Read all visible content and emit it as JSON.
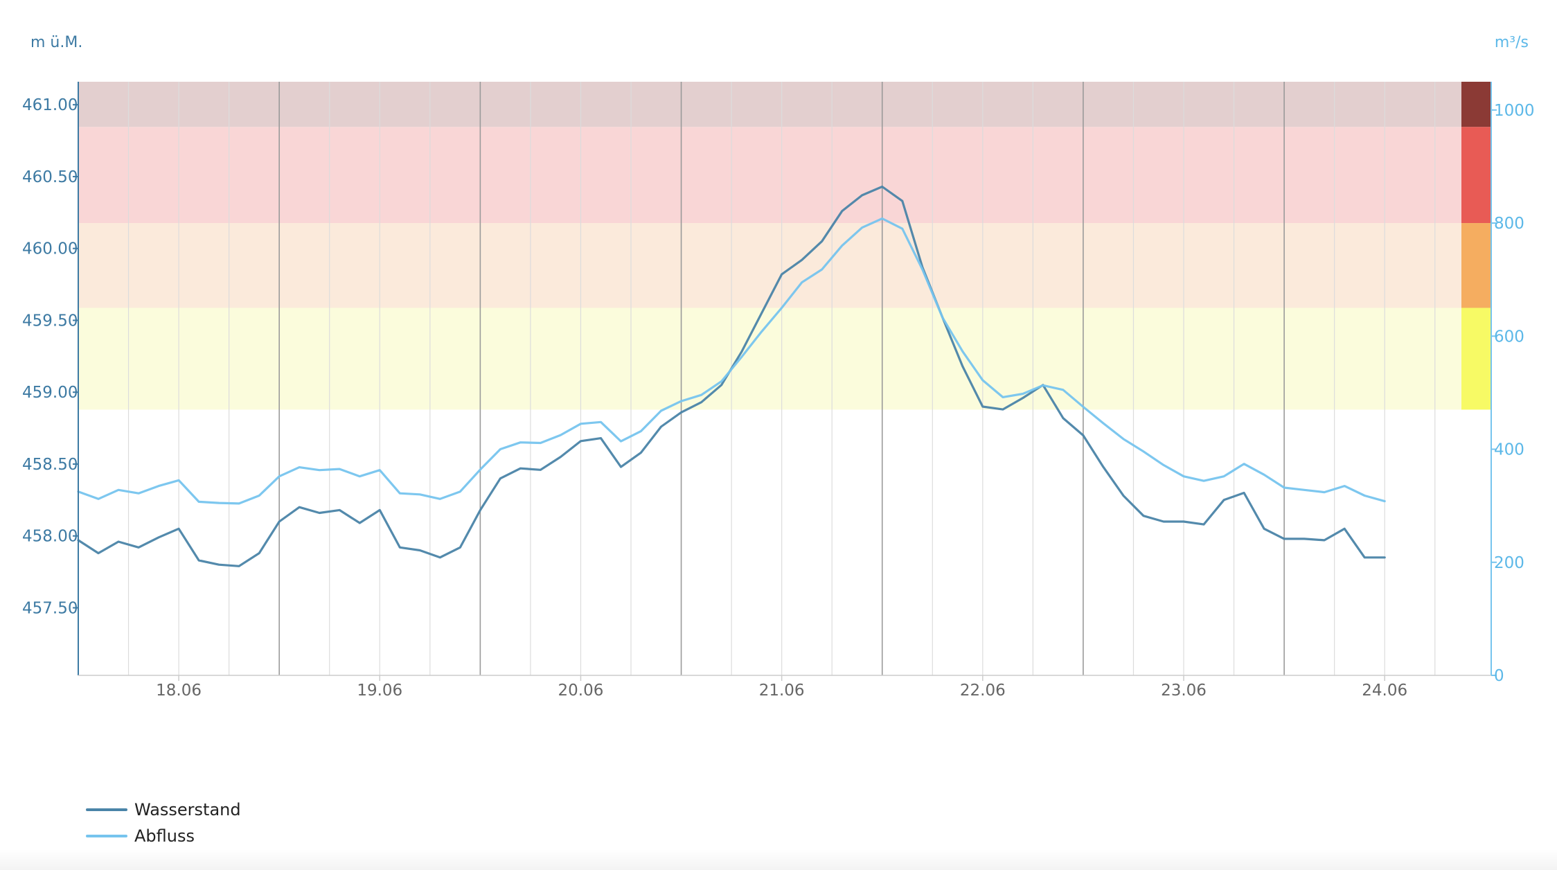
{
  "chart_data": {
    "type": "line",
    "left_axis": {
      "unit": "m ü.M.",
      "ticks": [
        "461.00",
        "460.50",
        "460.00",
        "459.50",
        "459.00",
        "458.50",
        "458.00",
        "457.50"
      ],
      "range": [
        457.03,
        461.16
      ]
    },
    "right_axis": {
      "unit": "m³/s",
      "ticks": [
        "1000",
        "800",
        "600",
        "400",
        "200",
        "0"
      ],
      "range": [
        0,
        1050
      ]
    },
    "x_axis": {
      "ticks": [
        "18.06",
        "19.06",
        "20.06",
        "21.06",
        "22.06",
        "23.06",
        "24.06"
      ],
      "range": [
        17.5,
        24.53
      ]
    },
    "danger_bands": [
      {
        "from": 970,
        "to": 1050,
        "fill": "#e3cfcf",
        "marker": "#8b3a35"
      },
      {
        "from": 800,
        "to": 970,
        "fill": "#f9d6d6",
        "marker": "#e85b55"
      },
      {
        "from": 650,
        "to": 800,
        "fill": "#fbeadb",
        "marker": "#f5ad60"
      },
      {
        "from": 470,
        "to": 650,
        "fill": "#fbfcdc",
        "marker": "#f7fa65"
      }
    ],
    "series": [
      {
        "name": "Wasserstand",
        "axis": "left",
        "color": "#4a84a8",
        "x": [
          17.5,
          17.6,
          17.7,
          17.8,
          17.9,
          18.0,
          18.1,
          18.2,
          18.3,
          18.4,
          18.5,
          18.6,
          18.7,
          18.8,
          18.9,
          19.0,
          19.1,
          19.2,
          19.3,
          19.4,
          19.5,
          19.6,
          19.7,
          19.8,
          19.9,
          20.0,
          20.1,
          20.2,
          20.3,
          20.4,
          20.5,
          20.6,
          20.7,
          20.8,
          20.9,
          21.0,
          21.1,
          21.2,
          21.3,
          21.4,
          21.5,
          21.6,
          21.7,
          21.8,
          21.9,
          22.0,
          22.1,
          22.2,
          22.3,
          22.4,
          22.5,
          22.6,
          22.7,
          22.8,
          22.9,
          23.0,
          23.1,
          23.2,
          23.3,
          23.4,
          23.5,
          23.6,
          23.7,
          23.8,
          23.9,
          24.0
        ],
        "y": [
          457.97,
          457.88,
          457.96,
          457.92,
          457.99,
          458.05,
          457.83,
          457.8,
          457.79,
          457.88,
          458.1,
          458.2,
          458.16,
          458.18,
          458.09,
          458.18,
          457.92,
          457.9,
          457.85,
          457.92,
          458.18,
          458.4,
          458.47,
          458.46,
          458.55,
          458.66,
          458.68,
          458.48,
          458.58,
          458.76,
          458.86,
          458.93,
          459.05,
          459.28,
          459.55,
          459.82,
          459.92,
          460.05,
          460.26,
          460.37,
          460.43,
          460.33,
          459.87,
          459.52,
          459.18,
          458.9,
          458.88,
          458.96,
          459.05,
          458.82,
          458.7,
          458.48,
          458.28,
          458.14,
          458.1,
          458.1,
          458.08,
          458.25,
          458.3,
          458.05,
          457.98,
          457.98,
          457.97,
          458.05,
          457.85,
          457.85
        ]
      },
      {
        "name": "Abfluss",
        "axis": "right",
        "color": "#76c4ee",
        "x": [
          17.5,
          17.6,
          17.7,
          17.8,
          17.9,
          18.0,
          18.1,
          18.2,
          18.3,
          18.4,
          18.5,
          18.6,
          18.7,
          18.8,
          18.9,
          19.0,
          19.1,
          19.2,
          19.3,
          19.4,
          19.5,
          19.6,
          19.7,
          19.8,
          19.9,
          20.0,
          20.1,
          20.2,
          20.3,
          20.4,
          20.5,
          20.6,
          20.7,
          20.8,
          20.9,
          21.0,
          21.1,
          21.2,
          21.3,
          21.4,
          21.5,
          21.6,
          21.7,
          21.8,
          21.9,
          22.0,
          22.1,
          22.2,
          22.3,
          22.4,
          22.5,
          22.6,
          22.7,
          22.8,
          22.9,
          23.0,
          23.1,
          23.2,
          23.3,
          23.4,
          23.5,
          23.6,
          23.7,
          23.8,
          23.9,
          24.0
        ],
        "y": [
          325,
          312,
          328,
          322,
          335,
          345,
          307,
          305,
          304,
          318,
          352,
          368,
          363,
          365,
          352,
          363,
          322,
          320,
          312,
          325,
          364,
          400,
          412,
          411,
          425,
          445,
          448,
          414,
          432,
          468,
          485,
          496,
          520,
          563,
          608,
          650,
          695,
          718,
          760,
          792,
          808,
          790,
          718,
          633,
          573,
          522,
          492,
          498,
          513,
          505,
          475,
          446,
          418,
          396,
          372,
          352,
          344,
          352,
          374,
          355,
          332,
          328,
          324,
          335,
          318,
          308
        ]
      }
    ]
  }
}
